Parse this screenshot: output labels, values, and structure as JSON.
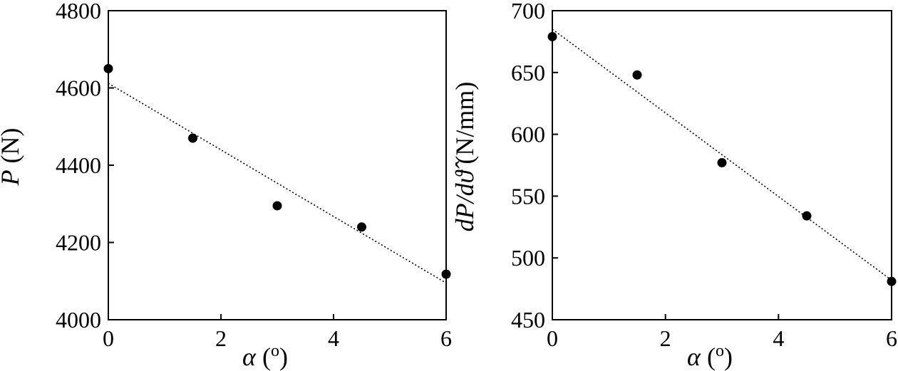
{
  "chart_data": [
    {
      "type": "scatter",
      "x": [
        0,
        1.5,
        3,
        4.5,
        6
      ],
      "y": [
        4650,
        4470,
        4295,
        4240,
        4118
      ],
      "trendline": {
        "style": "dotted",
        "from": [
          0,
          4612
        ],
        "to": [
          6,
          4095
        ]
      },
      "xlabel": {
        "sym": "α",
        "unit": " (o)"
      },
      "ylabel": {
        "sym": "P",
        "unit": " (N)"
      },
      "xlim": [
        0,
        6
      ],
      "ylim": [
        4000,
        4800
      ],
      "xticks": [
        "0",
        "2",
        "4",
        "6"
      ],
      "yticks": [
        "4000",
        "4200",
        "4400",
        "4600",
        "4800"
      ],
      "grid": false,
      "legend": "none"
    },
    {
      "type": "scatter",
      "x": [
        0,
        1.5,
        3,
        4.5,
        6
      ],
      "y": [
        679,
        648,
        577,
        534,
        481
      ],
      "trendline": {
        "style": "dotted",
        "from": [
          0,
          685
        ],
        "to": [
          6,
          482
        ]
      },
      "xlabel": {
        "sym": "α",
        "unit": " (o)"
      },
      "ylabel": {
        "sym": "dP/dϑ̂",
        "unit": " (N/mm)"
      },
      "xlim": [
        0,
        6
      ],
      "ylim": [
        450,
        700
      ],
      "xticks": [
        "0",
        "2",
        "4",
        "6"
      ],
      "yticks": [
        "450",
        "500",
        "550",
        "600",
        "650",
        "700"
      ],
      "grid": false,
      "legend": "none"
    }
  ]
}
